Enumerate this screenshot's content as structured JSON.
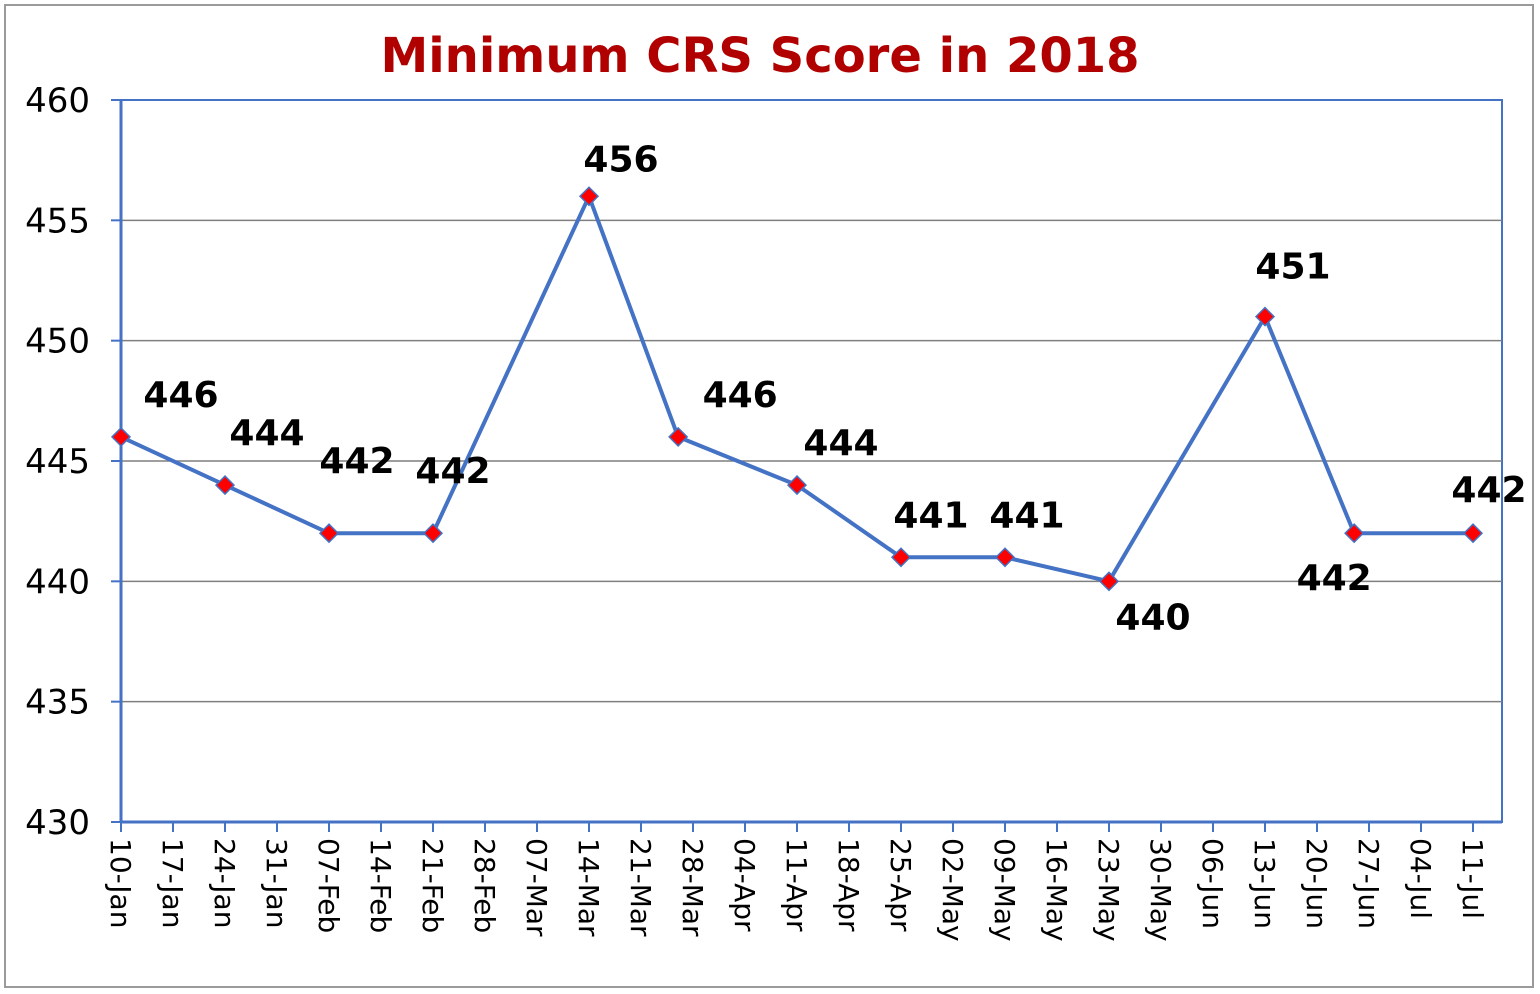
{
  "chart_data": {
    "type": "line",
    "title": "Minimum CRS Score in 2018",
    "xlabel": "",
    "ylabel": "",
    "ylim": [
      430,
      460
    ],
    "yticks": [
      430,
      435,
      440,
      445,
      450,
      455,
      460
    ],
    "x_tick_labels": [
      "10-Jan",
      "17-Jan",
      "24-Jan",
      "31-Jan",
      "07-Feb",
      "14-Feb",
      "21-Feb",
      "28-Feb",
      "07-Mar",
      "14-Mar",
      "21-Mar",
      "28-Mar",
      "04-Apr",
      "11-Apr",
      "18-Apr",
      "25-Apr",
      "02-May",
      "09-May",
      "16-May",
      "23-May",
      "30-May",
      "06-Jun",
      "13-Jun",
      "20-Jun",
      "27-Jun",
      "04-Jul",
      "11-Jul"
    ],
    "grid": "horizontal",
    "legend": "none",
    "series": [
      {
        "points": [
          {
            "date": "2018-01-10",
            "value": 446
          },
          {
            "date": "2018-01-24",
            "value": 444
          },
          {
            "date": "2018-02-07",
            "value": 442
          },
          {
            "date": "2018-02-21",
            "value": 442
          },
          {
            "date": "2018-03-14",
            "value": 456
          },
          {
            "date": "2018-03-26",
            "value": 446
          },
          {
            "date": "2018-04-11",
            "value": 444
          },
          {
            "date": "2018-04-25",
            "value": 441
          },
          {
            "date": "2018-05-09",
            "value": 441
          },
          {
            "date": "2018-05-23",
            "value": 440
          },
          {
            "date": "2018-06-13",
            "value": 451
          },
          {
            "date": "2018-06-25",
            "value": 442
          },
          {
            "date": "2018-07-11",
            "value": 442
          }
        ],
        "line_color": "#4472c4",
        "marker_color": "#ff0000",
        "marker_shape": "diamond"
      }
    ]
  }
}
